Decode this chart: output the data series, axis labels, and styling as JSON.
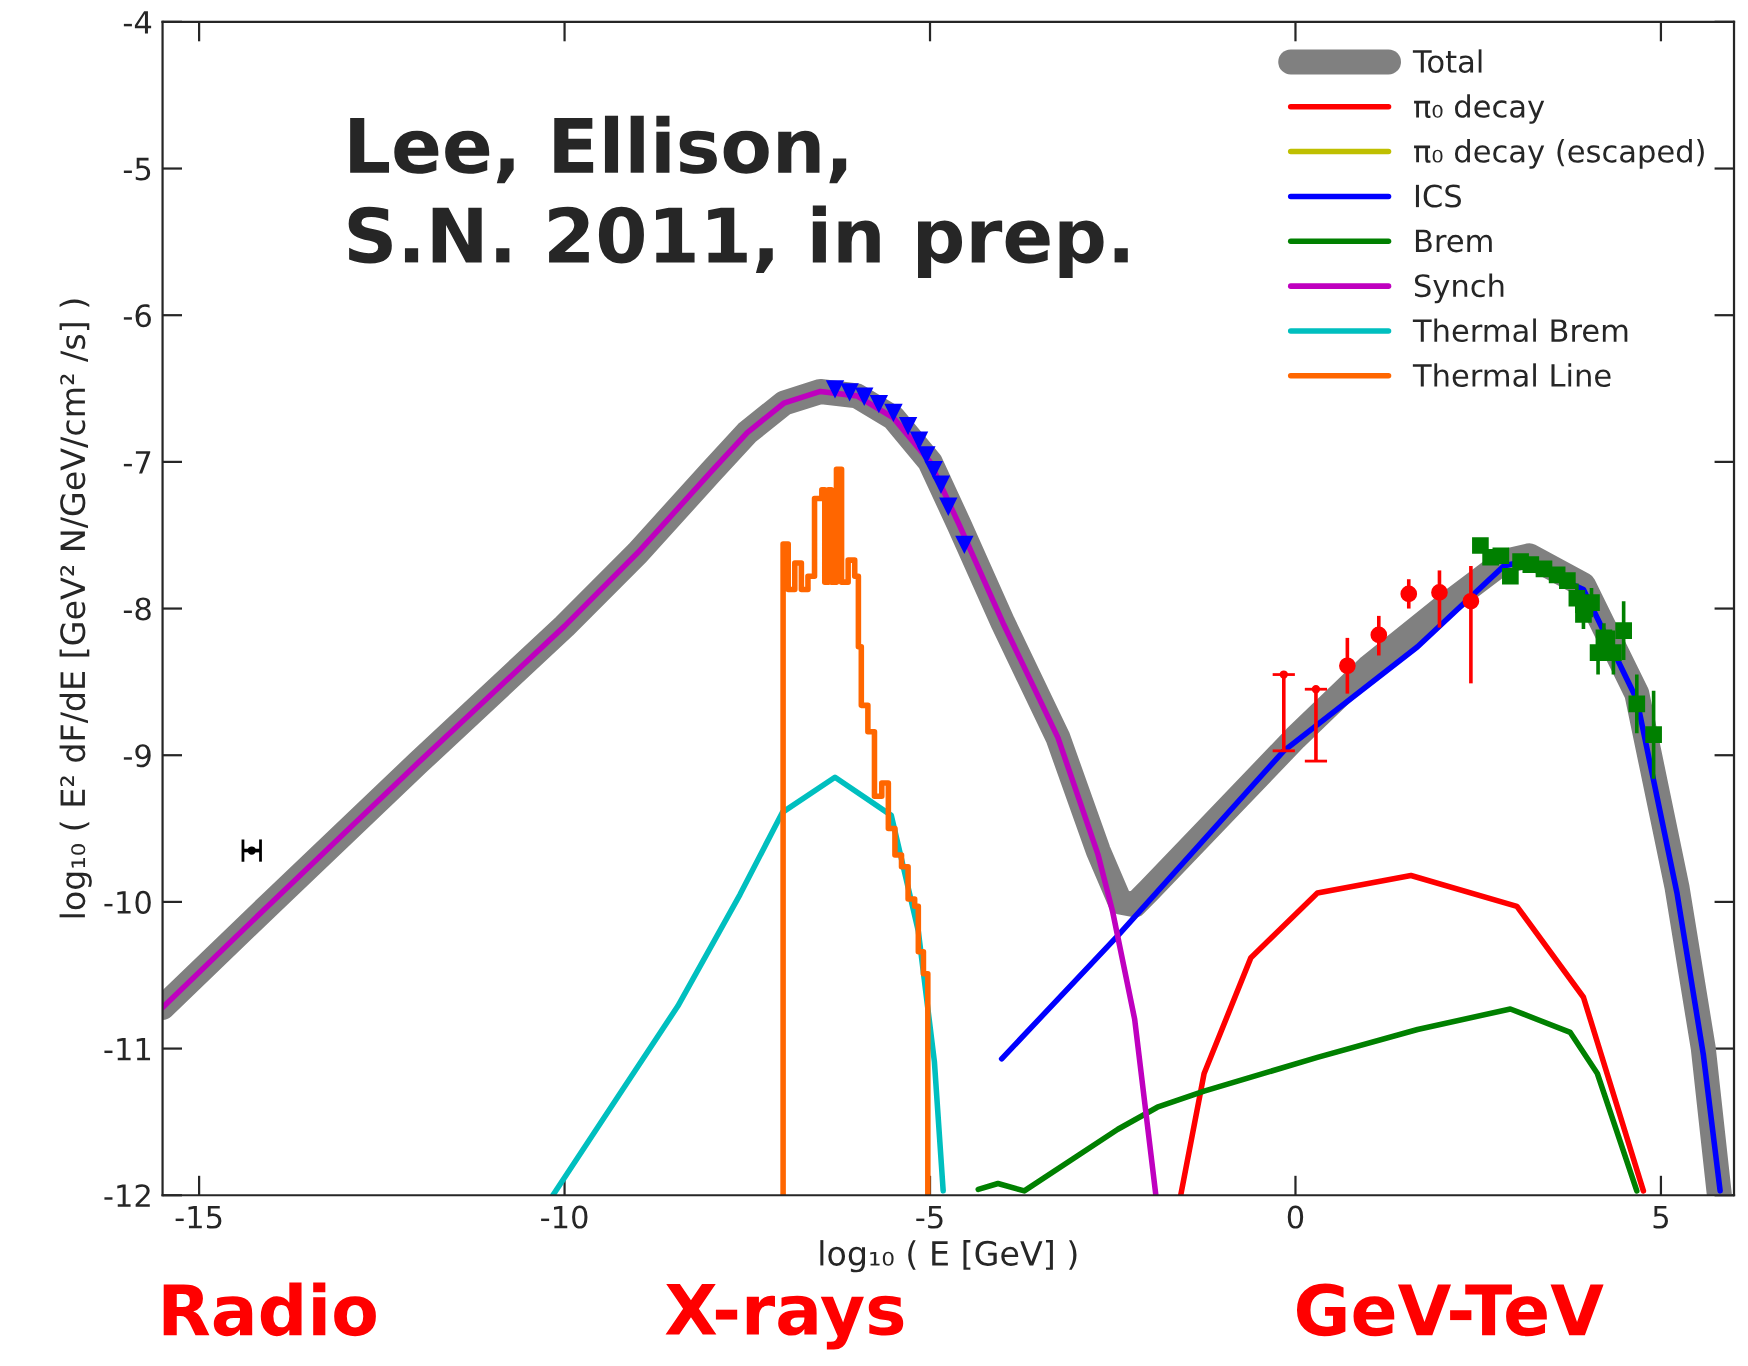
{
  "chart_data": {
    "type": "line",
    "xlabel": "log₁₀ ( E [GeV] )",
    "ylabel": "log₁₀ ( E² dF/dE [GeV² N/GeV/cm² /s] )",
    "xlim": [
      -15.5,
      6
    ],
    "xticks": [
      -15,
      -10,
      -5,
      0,
      5
    ],
    "ylim": [
      -12,
      -4
    ],
    "yticks": [
      -12,
      -11,
      -10,
      -9,
      -8,
      -7,
      -6,
      -5,
      -4
    ],
    "grid": false,
    "legend": "top right",
    "annotations": [
      "Lee, Ellison,\nS.N. 2011, in prep.",
      "Radio",
      "X-rays",
      "GeV-TeV"
    ],
    "series": [
      {
        "name": "Total",
        "color": "#808080",
        "x": [
          -15.5,
          -14,
          -12,
          -10,
          -9,
          -8,
          -7.5,
          -7,
          -6.5,
          -6,
          -5.5,
          -5,
          -4.6,
          -4,
          -3.25,
          -2.7,
          -2.4,
          -2.2,
          -2,
          -1,
          0,
          1,
          2,
          2.85,
          3.2,
          3.94,
          4.67,
          5.22,
          5.58,
          5.8
        ],
        "values": [
          -10.72,
          -10.0,
          -9.05,
          -8.12,
          -7.62,
          -7.07,
          -6.8,
          -6.6,
          -6.52,
          -6.55,
          -6.7,
          -7.0,
          -7.43,
          -8.1,
          -8.88,
          -9.65,
          -10.0,
          -10.02,
          -9.92,
          -9.4,
          -8.88,
          -8.4,
          -8.0,
          -7.68,
          -7.64,
          -7.84,
          -8.58,
          -9.9,
          -11.0,
          -12.0
        ]
      },
      {
        "name": "π₀ decay",
        "color": "#ff0000",
        "x": [
          -1.57,
          -1.25,
          -0.61,
          0.3,
          1.58,
          3.03,
          3.94,
          4.76
        ],
        "values": [
          -12.0,
          -11.17,
          -10.38,
          -9.94,
          -9.82,
          -10.03,
          -10.65,
          -11.97
        ]
      },
      {
        "name": "π₀ decay (escaped)",
        "color": "#bfbf00"
      },
      {
        "name": "ICS",
        "color": "#0000ff",
        "x": [
          -4.02,
          -2.43,
          -0.16,
          1.67,
          2.85,
          3.1,
          3.94,
          4.67,
          5.22,
          5.58,
          5.81
        ],
        "values": [
          -11.07,
          -10.23,
          -8.97,
          -8.26,
          -7.71,
          -7.68,
          -7.87,
          -8.62,
          -9.94,
          -11.04,
          -11.97
        ]
      },
      {
        "name": "Brem",
        "color": "#008000",
        "x": [
          -4.34,
          -4.07,
          -3.71,
          -2.43,
          -1.89,
          -1.25,
          0.3,
          1.67,
          2.94,
          3.76,
          4.13,
          4.67
        ],
        "values": [
          -11.96,
          -11.92,
          -11.97,
          -11.55,
          -11.4,
          -11.29,
          -11.06,
          -10.87,
          -10.73,
          -10.89,
          -11.17,
          -11.97
        ]
      },
      {
        "name": "Synch",
        "color": "#bf00bf",
        "x": [
          -15.5,
          -14,
          -12,
          -10,
          -9,
          -8,
          -7.5,
          -7,
          -6.5,
          -6,
          -5.5,
          -5,
          -4.6,
          -4,
          -3.25,
          -2.7,
          -2.5,
          -2.2,
          -1.91
        ],
        "values": [
          -10.72,
          -10.0,
          -9.05,
          -8.12,
          -7.62,
          -7.07,
          -6.8,
          -6.6,
          -6.52,
          -6.55,
          -6.7,
          -7.0,
          -7.43,
          -8.1,
          -8.88,
          -9.68,
          -10.07,
          -10.8,
          -12.0
        ]
      },
      {
        "name": "Thermal Brem",
        "color": "#00bfbf",
        "x": [
          -10.16,
          -9.3,
          -8.45,
          -7.6,
          -7.02,
          -6.3,
          -5.53,
          -5.16,
          -4.94,
          -4.82
        ],
        "values": [
          -12.0,
          -11.35,
          -10.71,
          -9.95,
          -9.39,
          -9.15,
          -9.41,
          -10.2,
          -11.09,
          -11.97
        ]
      },
      {
        "name": "Thermal Line",
        "color": "#ff6600",
        "type": "step",
        "x": [
          -7.01,
          -7.01,
          -6.94,
          -6.85,
          -6.76,
          -6.67,
          -6.58,
          -6.48,
          -6.44,
          -6.39,
          -6.35,
          -6.28,
          -6.21,
          -6.12,
          -6.03,
          -5.98,
          -5.94,
          -5.85,
          -5.76,
          -5.66,
          -5.57,
          -5.48,
          -5.39,
          -5.3,
          -5.21,
          -5.16,
          -5.09,
          -5.03
        ],
        "values": [
          -12.0,
          -7.56,
          -7.87,
          -7.69,
          -7.87,
          -7.78,
          -7.25,
          -7.19,
          -7.82,
          -7.19,
          -7.82,
          -7.05,
          -7.82,
          -7.67,
          -7.78,
          -8.26,
          -8.66,
          -8.84,
          -9.28,
          -9.19,
          -9.5,
          -9.68,
          -9.76,
          -9.98,
          -10.03,
          -10.34,
          -10.49,
          -12.0
        ]
      },
      {
        "color": "#0000ff",
        "type": "scatter",
        "marker": "triangle",
        "x": [
          -6.3,
          -6.1,
          -5.9,
          -5.7,
          -5.5,
          -5.3,
          -5.15,
          -5.05,
          -4.95,
          -4.85,
          -4.75,
          -4.53
        ],
        "values": [
          -6.5,
          -6.52,
          -6.55,
          -6.6,
          -6.66,
          -6.75,
          -6.85,
          -6.95,
          -7.05,
          -7.15,
          -7.3,
          -7.56
        ]
      },
      {
        "color": "#000000",
        "type": "scatter",
        "marker": "none",
        "x": [
          -14.28
        ],
        "values": [
          -9.65
        ],
        "xerrors": [
          0.12
        ]
      },
      {
        "color": "#ff0000",
        "type": "scatter",
        "marker": "circle",
        "x": [
          0.71,
          1.14,
          1.55,
          1.97,
          2.4
        ],
        "values": [
          -8.39,
          -8.18,
          -7.9,
          -7.89,
          -7.95
        ],
        "errors": [
          [
            -8.58,
            -8.2
          ],
          [
            -8.32,
            -8.05
          ],
          [
            -8.0,
            -7.8
          ],
          [
            -8.13,
            -7.74
          ],
          [
            -8.51,
            -7.71
          ]
        ]
      },
      {
        "color": "#ff0000",
        "type": "scatter",
        "marker": "none",
        "x": [
          -0.16,
          0.28
        ],
        "values": [
          -8.45,
          -8.55
        ],
        "errors": [
          [
            -8.97,
            -8.45
          ],
          [
            -9.04,
            -8.55
          ]
        ]
      },
      {
        "color": "#008000",
        "type": "scatter",
        "marker": "square",
        "x": [
          2.53,
          2.67,
          2.81,
          2.94,
          3.08,
          3.22,
          3.4,
          3.58,
          3.72,
          3.85,
          3.94,
          4.05,
          4.14,
          4.22,
          4.35,
          4.49,
          4.67,
          4.9
        ],
        "values": [
          -7.57,
          -7.65,
          -7.64,
          -7.78,
          -7.68,
          -7.7,
          -7.73,
          -7.77,
          -7.81,
          -7.93,
          -8.04,
          -7.96,
          -8.3,
          -8.2,
          -8.3,
          -8.15,
          -8.65,
          -8.86
        ],
        "errors": [
          0.05,
          0.05,
          0.05,
          0.05,
          0.05,
          0.05,
          0.05,
          0.05,
          0.05,
          0.1,
          0.1,
          0.1,
          0.15,
          0.1,
          0.15,
          0.2,
          0.2,
          0.3
        ]
      }
    ]
  }
}
